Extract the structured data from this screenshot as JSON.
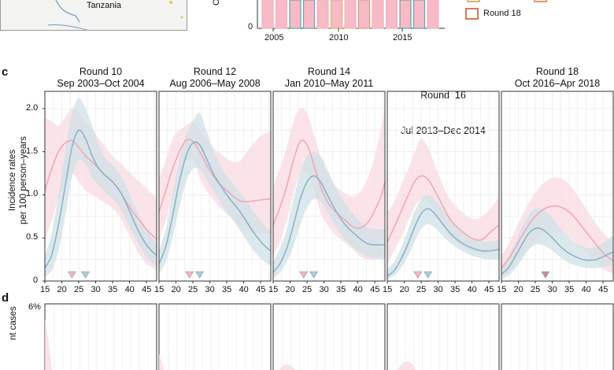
{
  "panels": {
    "c": "c",
    "d": "d"
  },
  "top": {
    "map_label": "Tanzania",
    "bar_years": [
      "2005",
      "2010",
      "2015"
    ],
    "bar_y_zero": "0",
    "bar_ylabel_fragment": "Ce",
    "legend_item": "Round 18"
  },
  "colors": {
    "pink": "#f2a7b6",
    "pink_band": "#fadbe1",
    "blue": "#8fb2c6",
    "blue_band": "#cfe1e7",
    "bar_pink": "#f7bac6"
  },
  "chart_data": [
    {
      "type": "line",
      "title": "Round 10",
      "subtitle": "Sep 2003–Oct 2004",
      "xlim": [
        15,
        48
      ],
      "ylim": [
        0,
        2.2
      ],
      "peak_markers": [
        23,
        27
      ],
      "series": [
        {
          "x": [
            15,
            17,
            19,
            21,
            23,
            25,
            27,
            29,
            31,
            33,
            35,
            37,
            39,
            41,
            43,
            45,
            47,
            48
          ],
          "values": [
            1.05,
            1.3,
            1.5,
            1.6,
            1.63,
            1.55,
            1.45,
            1.38,
            1.3,
            1.22,
            1.15,
            1.05,
            0.92,
            0.8,
            0.7,
            0.6,
            0.52,
            0.48
          ],
          "lo": [
            0.45,
            0.7,
            0.95,
            1.15,
            1.25,
            1.15,
            1.05,
            1.0,
            0.95,
            0.9,
            0.85,
            0.75,
            0.6,
            0.45,
            0.3,
            0.2,
            0.15,
            0.12
          ],
          "hi": [
            1.9,
            1.85,
            1.8,
            1.9,
            2.0,
            1.95,
            1.85,
            1.75,
            1.65,
            1.55,
            1.45,
            1.38,
            1.3,
            1.22,
            1.15,
            1.08,
            1.0,
            0.95
          ]
        },
        {
          "x": [
            15,
            17,
            19,
            21,
            23,
            25,
            27,
            29,
            31,
            33,
            35,
            37,
            39,
            41,
            43,
            45,
            47,
            48
          ],
          "values": [
            0.15,
            0.3,
            0.65,
            1.1,
            1.55,
            1.75,
            1.65,
            1.45,
            1.3,
            1.22,
            1.15,
            1.05,
            0.9,
            0.72,
            0.55,
            0.42,
            0.33,
            0.3
          ],
          "lo": [
            0.05,
            0.12,
            0.35,
            0.75,
            1.2,
            1.4,
            1.35,
            1.2,
            1.1,
            1.02,
            0.95,
            0.85,
            0.7,
            0.55,
            0.4,
            0.28,
            0.2,
            0.18
          ],
          "hi": [
            0.3,
            0.55,
            1.0,
            1.5,
            1.95,
            2.12,
            2.0,
            1.8,
            1.58,
            1.42,
            1.35,
            1.25,
            1.1,
            0.92,
            0.75,
            0.6,
            0.48,
            0.45
          ]
        }
      ]
    },
    {
      "type": "line",
      "title": "Round 12",
      "subtitle": "Aug 2006–May 2008",
      "xlim": [
        15,
        48
      ],
      "ylim": [
        0,
        2.2
      ],
      "peak_markers": [
        24,
        27
      ],
      "series": [
        {
          "x": [
            15,
            17,
            19,
            21,
            23,
            25,
            27,
            29,
            31,
            33,
            35,
            37,
            39,
            41,
            43,
            45,
            47,
            48
          ],
          "values": [
            0.8,
            1.05,
            1.3,
            1.5,
            1.63,
            1.62,
            1.5,
            1.35,
            1.22,
            1.12,
            1.05,
            0.98,
            0.93,
            0.92,
            0.93,
            0.94,
            0.95,
            0.95
          ],
          "lo": [
            0.45,
            0.7,
            0.95,
            1.25,
            1.4,
            1.4,
            1.2,
            1.05,
            0.95,
            0.85,
            0.78,
            0.7,
            0.62,
            0.58,
            0.56,
            0.55,
            0.55,
            0.55
          ],
          "hi": [
            1.2,
            1.4,
            1.65,
            1.75,
            1.8,
            1.85,
            1.75,
            1.65,
            1.55,
            1.48,
            1.42,
            1.38,
            1.4,
            1.5,
            1.6,
            1.68,
            1.72,
            1.75
          ]
        },
        {
          "x": [
            15,
            17,
            19,
            21,
            23,
            25,
            27,
            29,
            31,
            33,
            35,
            37,
            39,
            41,
            43,
            45,
            47,
            48
          ],
          "values": [
            0.2,
            0.4,
            0.75,
            1.15,
            1.45,
            1.6,
            1.58,
            1.42,
            1.25,
            1.12,
            1.0,
            0.9,
            0.8,
            0.68,
            0.56,
            0.46,
            0.38,
            0.35
          ],
          "lo": [
            0.08,
            0.22,
            0.5,
            0.85,
            1.15,
            1.3,
            1.3,
            1.18,
            1.05,
            0.92,
            0.8,
            0.7,
            0.58,
            0.46,
            0.35,
            0.26,
            0.2,
            0.18
          ],
          "hi": [
            0.35,
            0.6,
            1.0,
            1.4,
            1.7,
            1.85,
            1.95,
            1.75,
            1.52,
            1.35,
            1.22,
            1.12,
            1.02,
            0.92,
            0.8,
            0.7,
            0.6,
            0.58
          ]
        }
      ]
    },
    {
      "type": "line",
      "title": "Round 14",
      "subtitle": "Jan 2010–May 2011",
      "xlim": [
        15,
        48
      ],
      "ylim": [
        0,
        2.2
      ],
      "peak_markers": [
        24,
        27
      ],
      "series": [
        {
          "x": [
            15,
            17,
            19,
            21,
            23,
            25,
            27,
            29,
            31,
            33,
            35,
            37,
            39,
            41,
            43,
            45,
            47,
            48
          ],
          "values": [
            0.65,
            0.85,
            1.1,
            1.4,
            1.62,
            1.58,
            1.35,
            1.1,
            0.92,
            0.82,
            0.75,
            0.68,
            0.62,
            0.62,
            0.68,
            0.82,
            1.0,
            1.15
          ],
          "lo": [
            0.3,
            0.45,
            0.7,
            1.0,
            1.25,
            1.25,
            1.05,
            0.8,
            0.65,
            0.55,
            0.48,
            0.42,
            0.35,
            0.28,
            0.25,
            0.25,
            0.3,
            0.35
          ],
          "hi": [
            1.1,
            1.3,
            1.55,
            1.85,
            2.0,
            1.95,
            1.7,
            1.45,
            1.25,
            1.12,
            1.05,
            1.0,
            0.98,
            1.05,
            1.2,
            1.45,
            1.8,
            2.0
          ]
        },
        {
          "x": [
            15,
            17,
            19,
            21,
            23,
            25,
            27,
            29,
            31,
            33,
            35,
            37,
            39,
            41,
            43,
            45,
            47,
            48
          ],
          "values": [
            0.1,
            0.2,
            0.38,
            0.65,
            0.95,
            1.15,
            1.22,
            1.15,
            1.0,
            0.85,
            0.72,
            0.62,
            0.55,
            0.48,
            0.43,
            0.42,
            0.42,
            0.42
          ],
          "lo": [
            0.03,
            0.1,
            0.22,
            0.4,
            0.65,
            0.85,
            0.95,
            0.92,
            0.8,
            0.66,
            0.54,
            0.45,
            0.38,
            0.32,
            0.28,
            0.26,
            0.25,
            0.25
          ],
          "hi": [
            0.22,
            0.38,
            0.6,
            0.95,
            1.25,
            1.45,
            1.5,
            1.45,
            1.3,
            1.12,
            0.98,
            0.86,
            0.76,
            0.68,
            0.62,
            0.6,
            0.6,
            0.6
          ]
        }
      ]
    },
    {
      "type": "line",
      "title": "Round  16",
      "subtitle": "Jul 2013–Dec 2014",
      "xlim": [
        15,
        48
      ],
      "ylim": [
        0,
        2.2
      ],
      "peak_markers": [
        24,
        27
      ],
      "series": [
        {
          "x": [
            15,
            17,
            19,
            21,
            23,
            25,
            27,
            29,
            31,
            33,
            35,
            37,
            39,
            41,
            43,
            45,
            47,
            48
          ],
          "values": [
            0.45,
            0.62,
            0.8,
            0.98,
            1.15,
            1.22,
            1.18,
            1.05,
            0.9,
            0.75,
            0.65,
            0.58,
            0.52,
            0.48,
            0.48,
            0.55,
            0.62,
            0.65
          ],
          "lo": [
            0.2,
            0.35,
            0.5,
            0.68,
            0.85,
            0.95,
            0.92,
            0.82,
            0.68,
            0.55,
            0.46,
            0.4,
            0.36,
            0.33,
            0.32,
            0.33,
            0.35,
            0.36
          ],
          "hi": [
            0.8,
            0.92,
            1.1,
            1.28,
            1.48,
            1.65,
            1.55,
            1.35,
            1.15,
            0.98,
            0.88,
            0.8,
            0.74,
            0.72,
            0.75,
            0.82,
            0.92,
            0.98
          ]
        },
        {
          "x": [
            15,
            17,
            19,
            21,
            23,
            25,
            27,
            29,
            31,
            33,
            35,
            37,
            39,
            41,
            43,
            45,
            47,
            48
          ],
          "values": [
            0.06,
            0.12,
            0.25,
            0.42,
            0.62,
            0.78,
            0.84,
            0.78,
            0.68,
            0.58,
            0.5,
            0.44,
            0.4,
            0.37,
            0.35,
            0.35,
            0.36,
            0.37
          ],
          "lo": [
            0.02,
            0.06,
            0.15,
            0.28,
            0.45,
            0.6,
            0.66,
            0.62,
            0.54,
            0.46,
            0.4,
            0.35,
            0.31,
            0.28,
            0.26,
            0.25,
            0.25,
            0.25
          ],
          "hi": [
            0.14,
            0.22,
            0.38,
            0.58,
            0.8,
            0.95,
            1.0,
            0.95,
            0.85,
            0.74,
            0.64,
            0.57,
            0.52,
            0.48,
            0.46,
            0.46,
            0.47,
            0.48
          ]
        }
      ]
    },
    {
      "type": "line",
      "title": "Round 18",
      "subtitle": "Oct 2016–Apr 2018",
      "xlim": [
        15,
        48
      ],
      "ylim": [
        0,
        2.2
      ],
      "peak_markers": [
        28
      ],
      "series": [
        {
          "x": [
            15,
            17,
            19,
            21,
            23,
            25,
            27,
            29,
            31,
            33,
            35,
            37,
            39,
            41,
            43,
            45,
            47,
            48
          ],
          "values": [
            0.15,
            0.25,
            0.38,
            0.52,
            0.65,
            0.75,
            0.82,
            0.86,
            0.87,
            0.85,
            0.8,
            0.72,
            0.62,
            0.52,
            0.42,
            0.33,
            0.26,
            0.23
          ],
          "lo": [
            0.05,
            0.1,
            0.18,
            0.28,
            0.38,
            0.46,
            0.52,
            0.55,
            0.56,
            0.55,
            0.5,
            0.44,
            0.36,
            0.28,
            0.2,
            0.14,
            0.1,
            0.08
          ],
          "hi": [
            0.3,
            0.42,
            0.58,
            0.75,
            0.9,
            1.02,
            1.12,
            1.18,
            1.2,
            1.18,
            1.12,
            1.02,
            0.9,
            0.78,
            0.66,
            0.56,
            0.48,
            0.45
          ]
        },
        {
          "x": [
            15,
            17,
            19,
            21,
            23,
            25,
            27,
            29,
            31,
            33,
            35,
            37,
            39,
            41,
            43,
            45,
            47,
            48
          ],
          "values": [
            0.08,
            0.15,
            0.28,
            0.42,
            0.55,
            0.61,
            0.6,
            0.54,
            0.46,
            0.38,
            0.32,
            0.28,
            0.25,
            0.24,
            0.25,
            0.28,
            0.32,
            0.34
          ],
          "lo": [
            0.02,
            0.06,
            0.14,
            0.25,
            0.36,
            0.42,
            0.42,
            0.38,
            0.32,
            0.26,
            0.21,
            0.18,
            0.16,
            0.15,
            0.15,
            0.16,
            0.18,
            0.19
          ],
          "hi": [
            0.16,
            0.28,
            0.44,
            0.62,
            0.76,
            0.84,
            0.84,
            0.78,
            0.68,
            0.58,
            0.5,
            0.44,
            0.4,
            0.38,
            0.4,
            0.44,
            0.5,
            0.53
          ]
        }
      ]
    }
  ],
  "axes": {
    "y_ticks": [
      0,
      0.5,
      1.0,
      1.5,
      2.0
    ],
    "y_tick_labels": [
      "0",
      "0.5",
      "1.0",
      "1.5",
      "2.0"
    ],
    "x_ticks": [
      15,
      20,
      25,
      30,
      35,
      40,
      45
    ],
    "x_tick_labels": [
      "15",
      "20",
      "25",
      "30",
      "35",
      "40",
      "45"
    ],
    "ylabel_line1": "Incidence rates",
    "ylabel_line2": "per 100 person–years"
  },
  "panel_d": {
    "y_top_label": "6%",
    "ylabel_fragment": "nt cases"
  }
}
